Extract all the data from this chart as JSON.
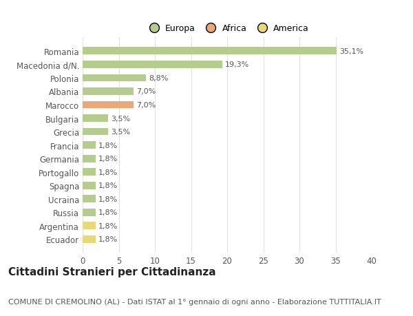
{
  "categories": [
    "Romania",
    "Macedonia d/N.",
    "Polonia",
    "Albania",
    "Marocco",
    "Bulgaria",
    "Grecia",
    "Francia",
    "Germania",
    "Portogallo",
    "Spagna",
    "Ucraina",
    "Russia",
    "Argentina",
    "Ecuador"
  ],
  "values": [
    35.1,
    19.3,
    8.8,
    7.0,
    7.0,
    3.5,
    3.5,
    1.8,
    1.8,
    1.8,
    1.8,
    1.8,
    1.8,
    1.8,
    1.8
  ],
  "labels": [
    "35,1%",
    "19,3%",
    "8,8%",
    "7,0%",
    "7,0%",
    "3,5%",
    "3,5%",
    "1,8%",
    "1,8%",
    "1,8%",
    "1,8%",
    "1,8%",
    "1,8%",
    "1,8%",
    "1,8%"
  ],
  "colors": [
    "#b5cc8e",
    "#b5cc8e",
    "#b5cc8e",
    "#b5cc8e",
    "#e8a87a",
    "#b5cc8e",
    "#b5cc8e",
    "#b5cc8e",
    "#b5cc8e",
    "#b5cc8e",
    "#b5cc8e",
    "#b5cc8e",
    "#b5cc8e",
    "#e8d87a",
    "#e8d87a"
  ],
  "legend": [
    {
      "label": "Europa",
      "color": "#b5cc8e"
    },
    {
      "label": "Africa",
      "color": "#e8a87a"
    },
    {
      "label": "America",
      "color": "#e8d87a"
    }
  ],
  "xlim": [
    0,
    40
  ],
  "xticks": [
    0,
    5,
    10,
    15,
    20,
    25,
    30,
    35,
    40
  ],
  "title": "Cittadini Stranieri per Cittadinanza",
  "subtitle": "COMUNE DI CREMOLINO (AL) - Dati ISTAT al 1° gennaio di ogni anno - Elaborazione TUTTITALIA.IT",
  "background_color": "#ffffff",
  "grid_color": "#e0e0e0",
  "bar_height": 0.55,
  "title_fontsize": 11,
  "subtitle_fontsize": 8,
  "label_fontsize": 8,
  "tick_fontsize": 8.5,
  "legend_fontsize": 9
}
